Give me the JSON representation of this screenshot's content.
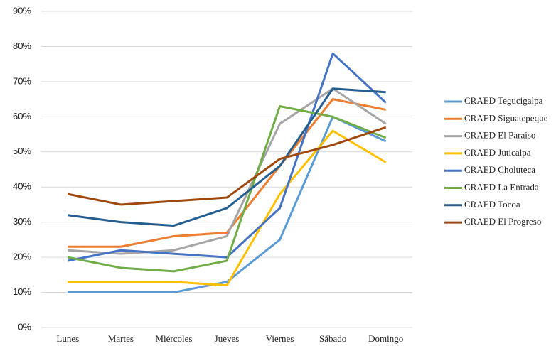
{
  "chart_data": {
    "type": "line",
    "categories": [
      "Lunes",
      "Martes",
      "Miércoles",
      "Jueves",
      "Viernes",
      "Sábado",
      "Domingo"
    ],
    "series": [
      {
        "name": "CRAED Tegucigalpa",
        "color": "#5b9bd5",
        "values": [
          10,
          10,
          10,
          13,
          25,
          60,
          53
        ]
      },
      {
        "name": "CRAED Siguatepeque",
        "color": "#ed7d31",
        "values": [
          23,
          23,
          26,
          27,
          46,
          65,
          62
        ]
      },
      {
        "name": "CRAED El Paraiso",
        "color": "#a5a5a5",
        "values": [
          22,
          21,
          22,
          26,
          58,
          68,
          58
        ]
      },
      {
        "name": "CRAED Juticalpa",
        "color": "#ffc000",
        "values": [
          13,
          13,
          13,
          12,
          38,
          56,
          47
        ]
      },
      {
        "name": "CRAED Choluteca",
        "color": "#4472c4",
        "values": [
          19,
          22,
          21,
          20,
          34,
          78,
          64
        ]
      },
      {
        "name": "CRAED La Entrada",
        "color": "#70ad47",
        "values": [
          20,
          17,
          16,
          19,
          63,
          60,
          54
        ]
      },
      {
        "name": "CRAED Tocoa",
        "color": "#255e91",
        "values": [
          32,
          30,
          29,
          34,
          46,
          68,
          67
        ]
      },
      {
        "name": "CRAED El Progreso",
        "color": "#9e480e",
        "values": [
          38,
          35,
          36,
          37,
          48,
          52,
          57
        ]
      }
    ],
    "ylim": [
      0,
      90
    ],
    "yticks": [
      {
        "value": 0,
        "label": "0%"
      },
      {
        "value": 10,
        "label": "10%"
      },
      {
        "value": 20,
        "label": "20%"
      },
      {
        "value": 30,
        "label": "30%"
      },
      {
        "value": 40,
        "label": "40%"
      },
      {
        "value": 50,
        "label": "50%"
      },
      {
        "value": 60,
        "label": "60%"
      },
      {
        "value": 70,
        "label": "70%"
      },
      {
        "value": 80,
        "label": "80%"
      },
      {
        "value": 90,
        "label": "90%"
      }
    ],
    "grid": true,
    "legend": "right"
  }
}
